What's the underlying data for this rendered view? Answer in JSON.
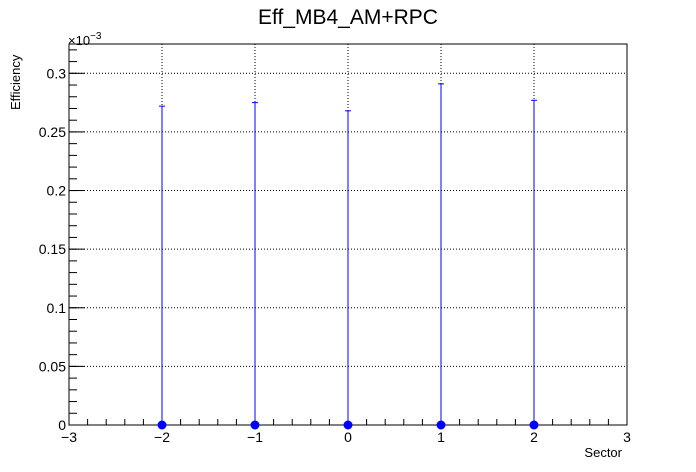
{
  "chart_data": {
    "type": "scatter",
    "title": "Eff_MB4_AM+RPC",
    "xlabel": "Sector",
    "ylabel": "Efficiency",
    "exponent_label": "×10",
    "exponent_power": "−3",
    "xlim": [
      -3,
      3
    ],
    "ylim": [
      0,
      0.000325
    ],
    "x_ticks": [
      {
        "value": -3,
        "label": "−3"
      },
      {
        "value": -2,
        "label": "−2"
      },
      {
        "value": -1,
        "label": "−1"
      },
      {
        "value": 0,
        "label": "0"
      },
      {
        "value": 1,
        "label": "1"
      },
      {
        "value": 2,
        "label": "2"
      },
      {
        "value": 3,
        "label": "3"
      }
    ],
    "y_ticks": [
      {
        "value": 0,
        "label": "0"
      },
      {
        "value": 5e-05,
        "label": "0.05"
      },
      {
        "value": 0.0001,
        "label": "0.1"
      },
      {
        "value": 0.00015,
        "label": "0.15"
      },
      {
        "value": 0.0002,
        "label": "0.2"
      },
      {
        "value": 0.00025,
        "label": "0.25"
      },
      {
        "value": 0.0003,
        "label": "0.3"
      }
    ],
    "grid": true,
    "series": [
      {
        "color": "#0000ff",
        "points": [
          {
            "x": -2,
            "y": 0,
            "err_low": 0,
            "err_high": 0.000272
          },
          {
            "x": -1,
            "y": 0,
            "err_low": 0,
            "err_high": 0.000275
          },
          {
            "x": 0,
            "y": 0,
            "err_low": 0,
            "err_high": 0.000268
          },
          {
            "x": 1,
            "y": 0,
            "err_low": 0,
            "err_high": 0.000291
          },
          {
            "x": 2,
            "y": 0,
            "err_low": 0,
            "err_high": 0.000277
          }
        ]
      }
    ]
  }
}
